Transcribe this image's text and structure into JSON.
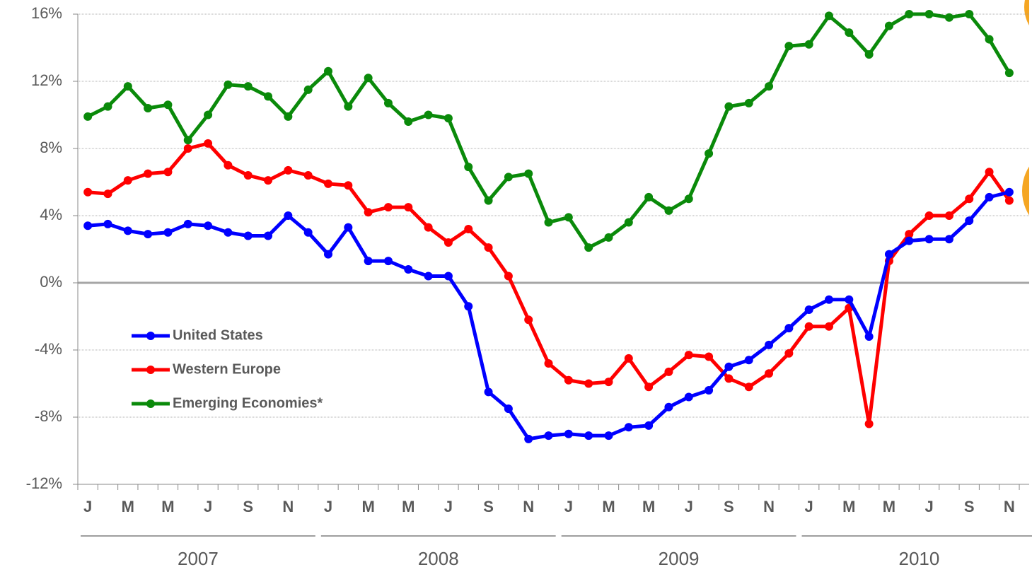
{
  "chart_data": {
    "type": "line",
    "categories": [
      "J",
      null,
      "M",
      null,
      "M",
      null,
      "J",
      null,
      "S",
      null,
      "N",
      null,
      "J",
      null,
      "M",
      null,
      "M",
      null,
      "J",
      null,
      "S",
      null,
      "N",
      null,
      "J",
      null,
      "M",
      null,
      "M",
      null,
      "J",
      null,
      "S",
      null,
      "N",
      null,
      "J",
      null,
      "M",
      null,
      "M",
      null,
      "J",
      null,
      "S",
      null,
      "N"
    ],
    "years": [
      "2007",
      "2008",
      "2009",
      "2010"
    ],
    "series": [
      {
        "name": "United States",
        "color": "#0000ff",
        "values": [
          3.4,
          3.5,
          3.1,
          2.9,
          3.0,
          3.5,
          3.4,
          3.0,
          2.8,
          2.8,
          4.0,
          3.0,
          1.7,
          3.3,
          1.3,
          1.3,
          0.8,
          0.4,
          0.4,
          -1.4,
          -6.5,
          -7.5,
          -9.3,
          -9.1,
          -9.0,
          -9.1,
          -9.1,
          -8.6,
          -8.5,
          -7.4,
          -6.8,
          -6.4,
          -5.0,
          -4.6,
          -3.7,
          -2.7,
          -1.6,
          -1.0,
          -1.0,
          -3.2,
          1.7,
          2.5,
          2.6,
          2.6,
          3.7,
          5.1,
          5.4
        ]
      },
      {
        "name": "Western Europe",
        "color": "#ff0000",
        "values": [
          5.4,
          5.3,
          6.1,
          6.5,
          6.6,
          8.0,
          8.3,
          7.0,
          6.4,
          6.1,
          6.7,
          6.4,
          5.9,
          5.8,
          4.2,
          4.5,
          4.5,
          3.3,
          2.4,
          3.2,
          2.1,
          0.4,
          -2.2,
          -4.8,
          -5.8,
          -6.0,
          -5.9,
          -4.5,
          -6.2,
          -5.3,
          -4.3,
          -4.4,
          -5.7,
          -6.2,
          -5.4,
          -4.2,
          -2.6,
          -2.6,
          -1.5,
          -8.4,
          1.3,
          2.9,
          4.0,
          4.0,
          5.0,
          6.6,
          4.9
        ]
      },
      {
        "name": "Emerging Economies*",
        "color": "#0a8a0a",
        "values": [
          9.9,
          10.5,
          11.7,
          10.4,
          10.6,
          8.5,
          10.0,
          11.8,
          11.7,
          11.1,
          9.9,
          11.5,
          12.6,
          10.5,
          12.2,
          10.7,
          9.6,
          10.0,
          9.8,
          6.9,
          4.9,
          6.3,
          6.5,
          3.6,
          3.9,
          2.1,
          2.7,
          3.6,
          5.1,
          4.3,
          5.0,
          7.7,
          10.5,
          10.7,
          11.7,
          14.1,
          14.2,
          15.9,
          14.9,
          13.6,
          15.3,
          16.0,
          16.0,
          15.8,
          16.0,
          14.5,
          12.5
        ]
      }
    ],
    "ylim": [
      -12,
      16
    ],
    "yticks": [
      {
        "value": -12,
        "label": "-12%"
      },
      {
        "value": -8,
        "label": "-8%"
      },
      {
        "value": -4,
        "label": "-4%"
      },
      {
        "value": 0,
        "label": "0%"
      },
      {
        "value": 4,
        "label": "4%"
      },
      {
        "value": 8,
        "label": "8%"
      },
      {
        "value": 12,
        "label": "12%"
      },
      {
        "value": 16,
        "label": "16%"
      }
    ],
    "grid": true
  }
}
